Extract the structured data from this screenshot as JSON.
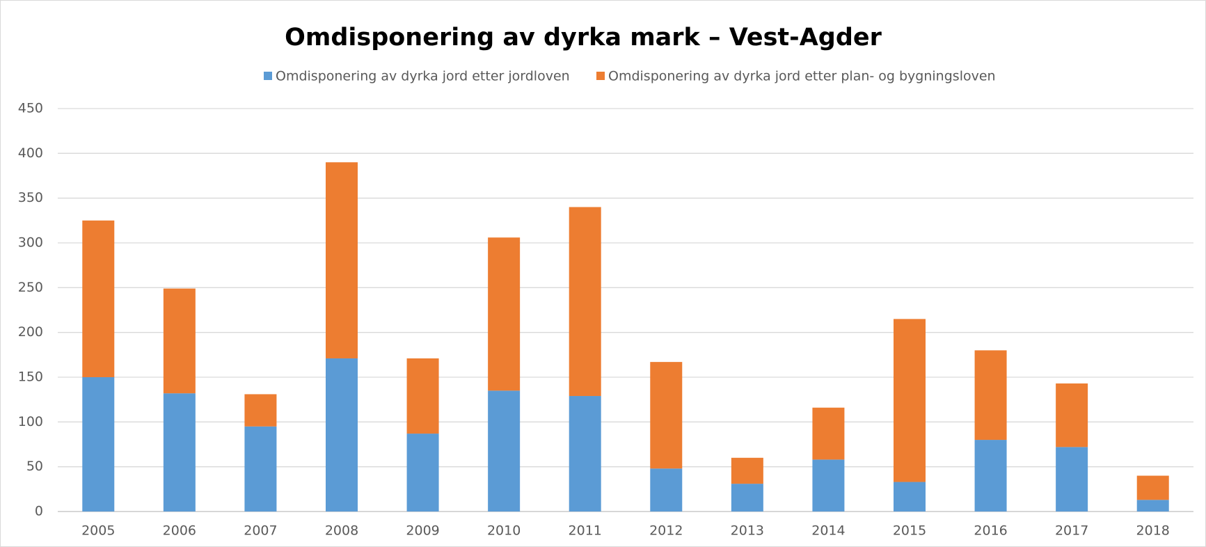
{
  "chart_data": {
    "type": "stacked_bar",
    "title": "Omdisponering av dyrka mark – Vest-Agder",
    "categories": [
      "2005",
      "2006",
      "2007",
      "2008",
      "2009",
      "2010",
      "2011",
      "2012",
      "2013",
      "2014",
      "2015",
      "2016",
      "2017",
      "2018"
    ],
    "series": [
      {
        "name": "Omdisponering av dyrka jord etter jordloven",
        "color": "#5b9bd5",
        "values": [
          150,
          132,
          95,
          171,
          87,
          135,
          129,
          48,
          31,
          58,
          33,
          80,
          72,
          13
        ]
      },
      {
        "name": "Omdisponering av dyrka jord etter plan- og bygningsloven",
        "color": "#ed7d31",
        "values": [
          175,
          117,
          36,
          219,
          84,
          171,
          211,
          119,
          29,
          58,
          182,
          100,
          71,
          27
        ]
      }
    ],
    "ylim": [
      0,
      450
    ],
    "yticks": [
      0,
      50,
      100,
      150,
      200,
      250,
      300,
      350,
      400,
      450
    ],
    "grid": true,
    "legend": "top"
  }
}
